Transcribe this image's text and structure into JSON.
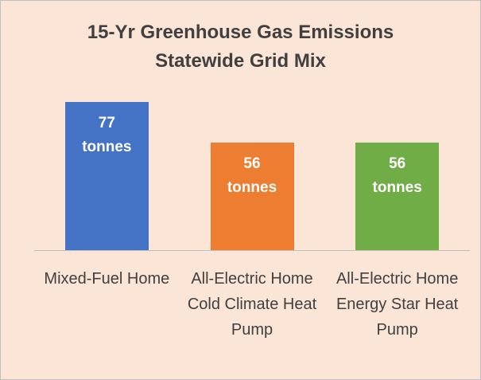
{
  "chart_data": {
    "type": "bar",
    "title": [
      "15-Yr Greenhouse Gas Emissions",
      "Statewide Grid Mix"
    ],
    "categories": [
      "Mixed-Fuel Home",
      "All-Electric Home Cold Climate Heat Pump",
      "All-Electric Home Energy Star Heat Pump"
    ],
    "values": [
      77,
      56,
      56
    ],
    "value_labels": [
      "77 tonnes",
      "56 tonnes",
      "56 tonnes"
    ],
    "colors": [
      "#4472c4",
      "#ed7d31",
      "#70ad47"
    ],
    "ylim": [
      0,
      80
    ]
  }
}
